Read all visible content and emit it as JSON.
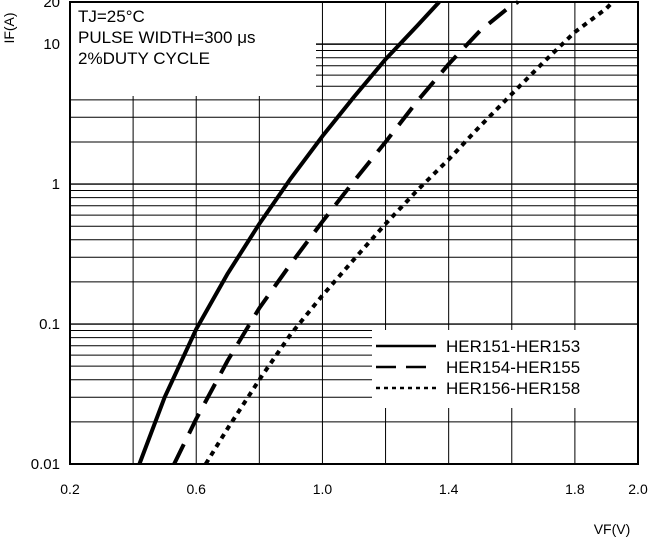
{
  "chart_data": {
    "type": "line",
    "title": "",
    "xlabel": "VF(V)",
    "ylabel": "IF(A)",
    "x_scale": "linear",
    "y_scale": "log",
    "xlim": [
      0.2,
      2.0
    ],
    "ylim": [
      0.01,
      20
    ],
    "x_ticks": [
      0.2,
      0.6,
      1.0,
      1.4,
      1.8,
      2.0
    ],
    "x_tick_labels": [
      "0.2",
      "0.6",
      "1.0",
      "1.4",
      "1.8",
      "2.0"
    ],
    "y_ticks": [
      0.01,
      0.1,
      1,
      10,
      20
    ],
    "y_tick_labels": [
      "0.01",
      "0.1",
      "1",
      "10",
      "20"
    ],
    "grid": true,
    "legend_position": "lower-right",
    "annotation_lines": [
      "TJ=25°C",
      "PULSE WIDTH=300 μs",
      "2%DUTY CYCLE"
    ],
    "series": [
      {
        "name": "HER151-HER153",
        "style": "solid",
        "color": "#000000",
        "points": [
          [
            0.42,
            0.01
          ],
          [
            0.5,
            0.03
          ],
          [
            0.6,
            0.092
          ],
          [
            0.7,
            0.23
          ],
          [
            0.8,
            0.52
          ],
          [
            0.9,
            1.1
          ],
          [
            1.0,
            2.2
          ],
          [
            1.1,
            4.2
          ],
          [
            1.2,
            7.8
          ],
          [
            1.3,
            13.5
          ],
          [
            1.37,
            20
          ]
        ]
      },
      {
        "name": "HER154-HER155",
        "style": "dashed",
        "color": "#000000",
        "points": [
          [
            0.53,
            0.01
          ],
          [
            0.6,
            0.021
          ],
          [
            0.7,
            0.055
          ],
          [
            0.8,
            0.13
          ],
          [
            0.9,
            0.27
          ],
          [
            1.0,
            0.54
          ],
          [
            1.1,
            1.05
          ],
          [
            1.2,
            2.0
          ],
          [
            1.3,
            3.9
          ],
          [
            1.4,
            7.2
          ],
          [
            1.5,
            12.5
          ],
          [
            1.6,
            19
          ],
          [
            1.62,
            20
          ]
        ]
      },
      {
        "name": "HER156-HER158",
        "style": "dotted",
        "color": "#000000",
        "points": [
          [
            0.63,
            0.01
          ],
          [
            0.7,
            0.018
          ],
          [
            0.8,
            0.04
          ],
          [
            0.9,
            0.085
          ],
          [
            1.0,
            0.16
          ],
          [
            1.1,
            0.29
          ],
          [
            1.2,
            0.52
          ],
          [
            1.3,
            0.9
          ],
          [
            1.4,
            1.5
          ],
          [
            1.5,
            2.6
          ],
          [
            1.6,
            4.4
          ],
          [
            1.7,
            7.4
          ],
          [
            1.8,
            12.2
          ],
          [
            1.9,
            18
          ],
          [
            1.92,
            20
          ]
        ]
      }
    ]
  }
}
